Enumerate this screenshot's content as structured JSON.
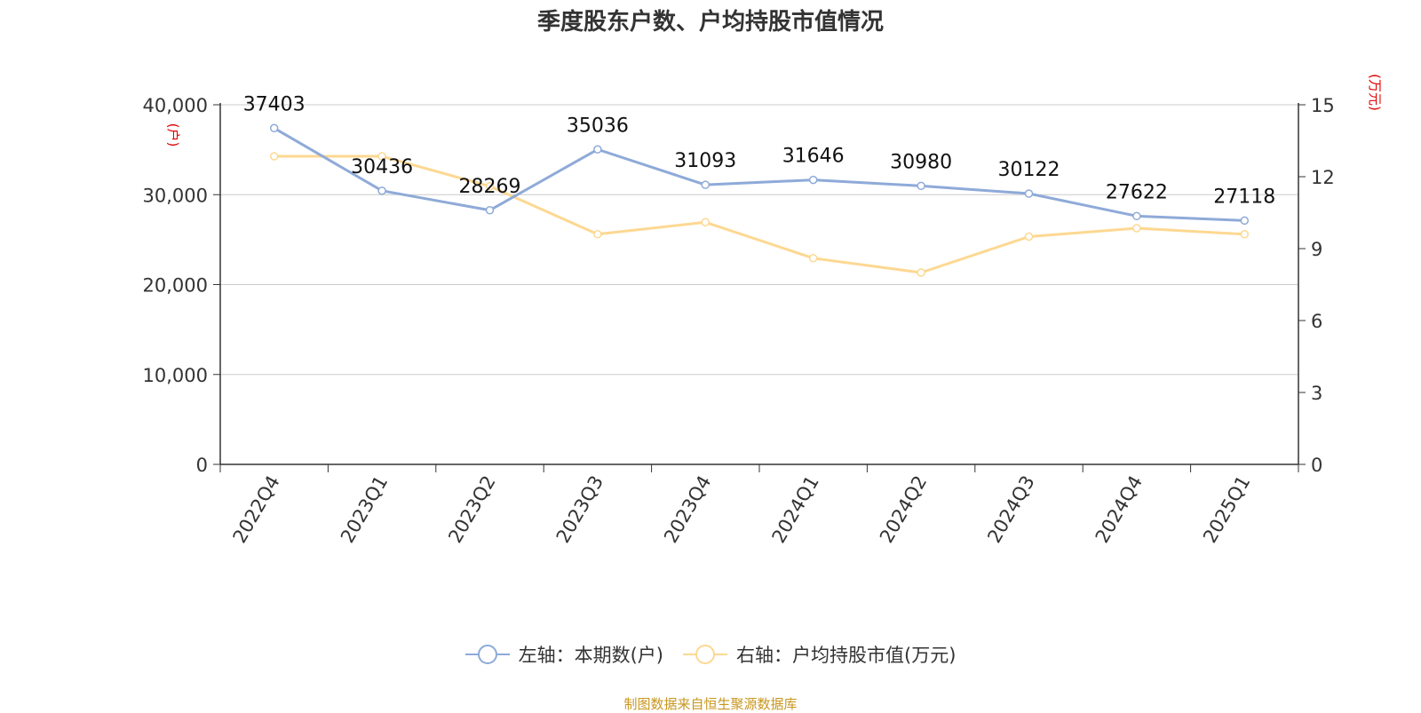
{
  "title": "季度股东户数、户均持股市值情况",
  "footer": "制图数据来自恒生聚源数据库",
  "colors": {
    "series_left": "#8eaad8",
    "series_right": "#fdd892",
    "unit_label": "#e00000",
    "axis": "#333333",
    "grid": "#cccccc"
  },
  "chart_data": {
    "type": "line",
    "title": "季度股东户数、户均持股市值情况",
    "categories": [
      "2022Q4",
      "2023Q1",
      "2023Q2",
      "2023Q3",
      "2023Q4",
      "2024Q1",
      "2024Q2",
      "2024Q3",
      "2024Q4",
      "2025Q1"
    ],
    "y_left": {
      "unit": "(户)",
      "min": 0,
      "max": 40000,
      "ticks": [
        "0",
        "10,000",
        "20,000",
        "30,000",
        "40,000"
      ],
      "tick_values": [
        0,
        10000,
        20000,
        30000,
        40000
      ]
    },
    "y_right": {
      "unit": "(万元)",
      "min": 0,
      "max": 15,
      "ticks": [
        "0",
        "3",
        "6",
        "9",
        "12",
        "15"
      ],
      "tick_values": [
        0,
        3,
        6,
        9,
        12,
        15
      ]
    },
    "grid": true,
    "legend_position": "bottom",
    "series": [
      {
        "name": "左轴：本期数(户)",
        "axis": "left",
        "values": [
          37403,
          30436,
          28269,
          35036,
          31093,
          31646,
          30980,
          30122,
          27622,
          27118
        ],
        "labels": [
          "37403",
          "30436",
          "28269",
          "35036",
          "31093",
          "31646",
          "30980",
          "30122",
          "27622",
          "27118"
        ]
      },
      {
        "name": "右轴：户均持股市值(万元)",
        "axis": "right",
        "values": [
          12.85,
          12.85,
          11.6,
          9.6,
          10.1,
          8.6,
          8.0,
          9.5,
          9.85,
          9.6
        ]
      }
    ]
  }
}
